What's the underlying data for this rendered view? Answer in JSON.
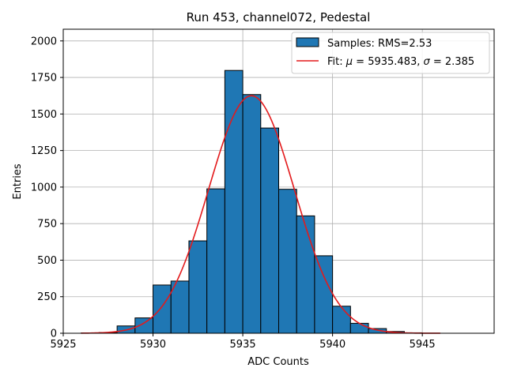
{
  "chart_data": {
    "type": "bar",
    "title": "Run 453, channel072, Pedestal",
    "xlabel": "ADC Counts",
    "ylabel": "Entries",
    "xlim": [
      5925,
      5949
    ],
    "ylim": [
      0,
      2080
    ],
    "xticks": [
      5925,
      5930,
      5935,
      5940,
      5945
    ],
    "yticks": [
      0,
      250,
      500,
      750,
      1000,
      1250,
      1500,
      1750,
      2000
    ],
    "grid": true,
    "legend_position": "top-right",
    "histogram": {
      "name": "Samples: RMS=2.53",
      "color": "#1f77b4",
      "bin_width": 1,
      "bins": [
        {
          "x0": 5926,
          "value": 2
        },
        {
          "x0": 5927,
          "value": 5
        },
        {
          "x0": 5928,
          "value": 50
        },
        {
          "x0": 5929,
          "value": 105
        },
        {
          "x0": 5930,
          "value": 330
        },
        {
          "x0": 5931,
          "value": 357
        },
        {
          "x0": 5932,
          "value": 632
        },
        {
          "x0": 5933,
          "value": 988
        },
        {
          "x0": 5934,
          "value": 1798
        },
        {
          "x0": 5935,
          "value": 1633
        },
        {
          "x0": 5936,
          "value": 1404
        },
        {
          "x0": 5937,
          "value": 985
        },
        {
          "x0": 5938,
          "value": 803
        },
        {
          "x0": 5939,
          "value": 530
        },
        {
          "x0": 5940,
          "value": 185
        },
        {
          "x0": 5941,
          "value": 68
        },
        {
          "x0": 5942,
          "value": 32
        },
        {
          "x0": 5943,
          "value": 12
        },
        {
          "x0": 5944,
          "value": 3
        }
      ]
    },
    "fit": {
      "name_prefix": "Fit: ",
      "mu_symbol": "μ",
      "mu_text": " = 5935.483, ",
      "sigma_symbol": "σ",
      "sigma_text": " = 2.385",
      "color": "#e31a1c",
      "mu": 5935.483,
      "sigma": 2.385,
      "amplitude": 1625,
      "x_range": [
        5926,
        5946
      ]
    }
  }
}
